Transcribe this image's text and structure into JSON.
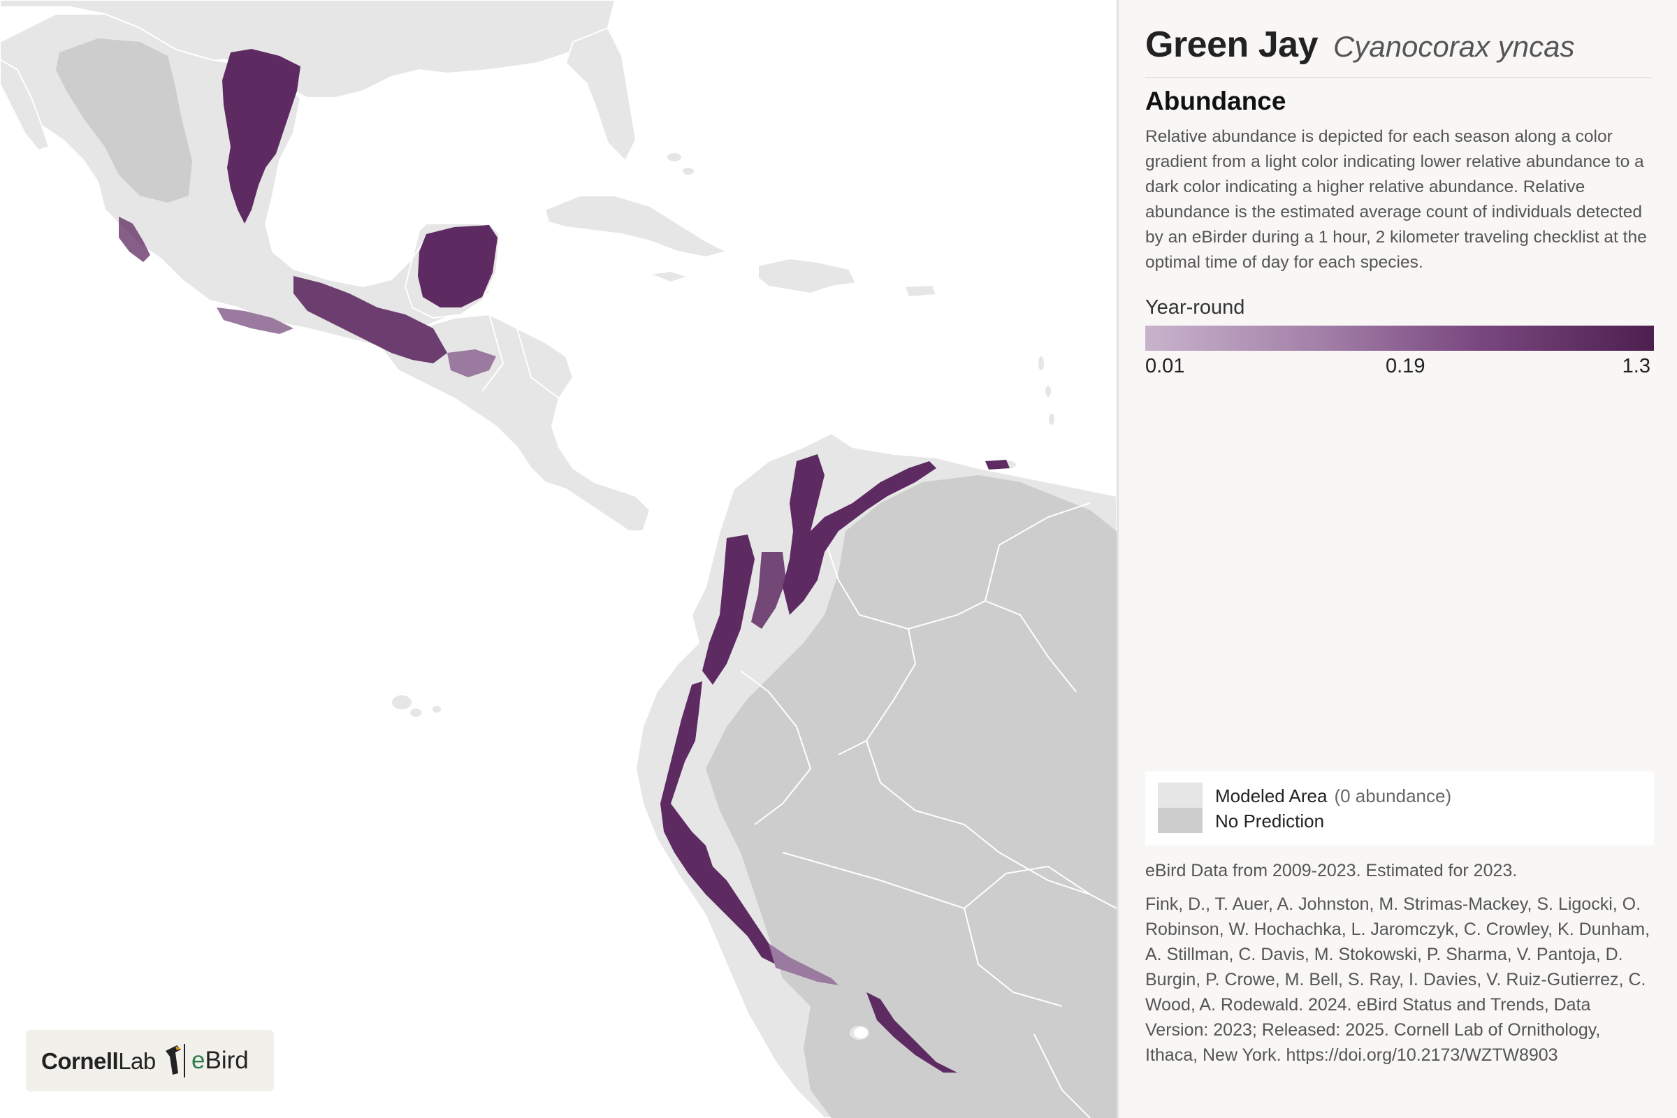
{
  "header": {
    "common_name": "Green Jay",
    "scientific_name": "Cyanocorax yncas"
  },
  "abundance": {
    "title": "Abundance",
    "description": "Relative abundance is depicted for each season along a color gradient from a light color indicating lower relative abundance to a dark color indicating a higher relative abundance. Relative abundance is the estimated average count of individuals detected by an eBirder during a 1 hour, 2 kilometer traveling checklist at the optimal time of day for each species."
  },
  "scale": {
    "season": "Year-round",
    "min": "0.01",
    "mid": "0.19",
    "max": "1.3",
    "colors": [
      "#c8b3cc",
      "#a27fa7",
      "#7a4880",
      "#4d1f4f"
    ]
  },
  "legend": {
    "modeled_label": "Modeled Area",
    "modeled_note": "(0 abundance)",
    "no_prediction_label": "No Prediction",
    "modeled_color": "#e6e6e6",
    "no_prediction_color": "#cdcdcd"
  },
  "data_note": "eBird Data from 2009-2023. Estimated for 2023.",
  "citation": "Fink, D., T. Auer, A. Johnston, M. Strimas-Mackey, S. Ligocki, O. Robinson, W. Hochachka, L. Jaromczyk, C. Crowley, K. Dunham, A. Stillman, C. Davis, M. Stokowski, P. Sharma, V. Pantoja, D. Burgin, P. Crowe, M. Bell, S. Ray, I. Davies, V. Ruiz-Gutierrez, C. Wood, A. Rodewald. 2024. eBird Status and Trends, Data Version: 2023; Released: 2025. Cornell Lab of Ornithology, Ithaca, New York. https://doi.org/10.2173/WZTW8903",
  "logo": {
    "cornell_bold": "Cornell",
    "cornell_rest": "Lab",
    "ebird_e": "e",
    "ebird_rest": "Bird"
  },
  "map": {
    "land_color": "#e6e6e6",
    "no_prediction_color": "#cdcdcd",
    "abundance_color": "#5e2a62",
    "abundance_light": "#9b7aa0",
    "ocean_color": "#ffffff"
  }
}
